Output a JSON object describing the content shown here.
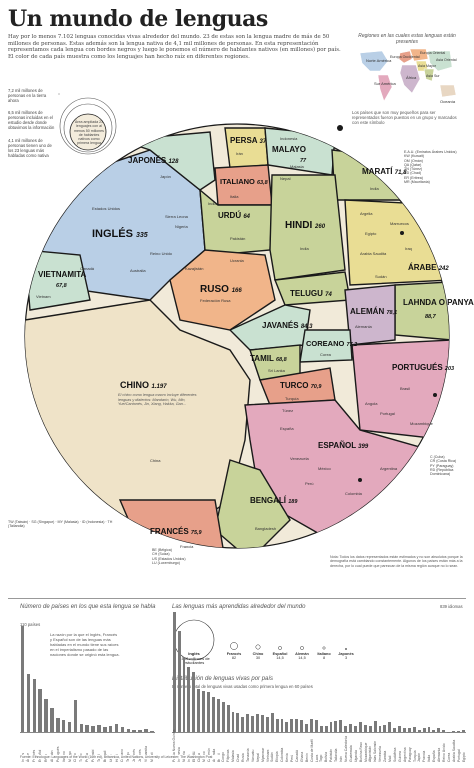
{
  "title": "Un mundo de lenguas",
  "intro": "Hay por lo menos 7.102 lenguas conocidas vivas alrededor del mundo. 23 de estas son la lengua madre de más de 50 millones de personas. Estas además son la lengua nativa de 4,1 mil millones de personas. En esta representación representamos cada lengua con bordes negros y luego le ponemos el número de hablantes nativos (en millones) por país. El color de cada país muestra como los lenguajes han hecho raíz en diferentes regiones.",
  "scale_legend": {
    "a": "7,2 mil millones de personas en la tierra ahora",
    "b": "6,5 mil millones de personas incluidas en el estudio desde donde obtuvimos la información",
    "c": "4,1 mil millones de personas tienen uno de los 23 lenguas más habladas como nativa",
    "d": "Área ampliada 23 lenguajes con al menos 50 millones de hablantes nativos como primera lengua"
  },
  "regions_map": {
    "title": "Regiones en las cuales estas lenguas están presentes",
    "regions": [
      "Europa Oriental",
      "Europa Occidental",
      "Asia Mayor",
      "Asia Sur",
      "Asia Oriental",
      "Norte América",
      "Sur América",
      "África",
      "Oceanía"
    ]
  },
  "small_countries_note": "Los países que son muy pequeños para ser representados fueron puestos en un grupo y marcados con este símbolo",
  "languages": [
    {
      "name": "PERSA",
      "value": "37"
    },
    {
      "name": "MALAYO",
      "value": "77"
    },
    {
      "name": "JAPONÉS",
      "value": "128"
    },
    {
      "name": "ITALIANO",
      "value": "63,8"
    },
    {
      "name": "MARATÍ",
      "value": "71,8"
    },
    {
      "name": "URDÚ",
      "value": "64"
    },
    {
      "name": "HINDI",
      "value": "260"
    },
    {
      "name": "INGLÉS",
      "value": "335"
    },
    {
      "name": "VIETNAMITA",
      "value": "67,8"
    },
    {
      "name": "RUSO",
      "value": "166"
    },
    {
      "name": "TELUGU",
      "value": "74"
    },
    {
      "name": "ÁRABE",
      "value": "242"
    },
    {
      "name": "ALEMÁN",
      "value": "78,1"
    },
    {
      "name": "LAHNDA O PANYABÍ",
      "value": "88,7"
    },
    {
      "name": "JAVANÉS",
      "value": "84,3"
    },
    {
      "name": "COREANO",
      "value": "77,2"
    },
    {
      "name": "TAMIL",
      "value": "68,8"
    },
    {
      "name": "PORTUGUÉS",
      "value": "203"
    },
    {
      "name": "CHINO",
      "value": "1.197"
    },
    {
      "name": "TURCO",
      "value": "70,9"
    },
    {
      "name": "ESPAÑOL",
      "value": "399"
    },
    {
      "name": "BENGALÍ",
      "value": "189"
    },
    {
      "name": "FRANCÉS",
      "value": "75,9"
    }
  ],
  "countries": {
    "indonesia": "Indonesia",
    "malasia": "Malasia",
    "tailandia": "Tailandia",
    "irán": "Irán",
    "afganistán": "Afganistán",
    "japon": "Japón",
    "italia": "Italia",
    "india": "India",
    "pakistan": "Pakistán",
    "nepal": "Nepal",
    "eeuu": "Estados Unidos",
    "reino_unido": "Reino Unido",
    "canada": "Canadá",
    "australia": "Australia",
    "nigeria": "Nigeria",
    "sierra_leona": "Sierra Leona",
    "vietnam": "Vietnam",
    "kazajistan": "Kazajistán",
    "ucrania": "Ucrania",
    "federacion_rusa": "Federación Rusa",
    "egipto": "Egipto",
    "argelia": "Argelia",
    "marruecos": "Marruecos",
    "iraq": "Iraq",
    "arabia_saudita": "Arabia Saudita",
    "sudan": "Sudán",
    "alemania": "Alemania",
    "corea": "Corea",
    "brasil": "Brasil",
    "portugal": "Portugal",
    "mozambique": "Mozambique",
    "angola": "Angola",
    "china": "China",
    "turquia": "Turquía",
    "mexico": "México",
    "colombia": "Colombia",
    "argentina": "Argentina",
    "espana": "España",
    "venezuela": "Venezuela",
    "peru": "Perú",
    "bangladesh": "Bangladesh",
    "francia": "Francia",
    "sri_lanka": "Sri Lanka",
    "tunez": "Túnez"
  },
  "chinese_note": "El chino como lengua macro incluye diferentes lenguas y dialectos: Mandarín, Wu, Min, Yue/Cantonés, Jin, Xiang, Hakka, Gan...",
  "arabic_abbrev": [
    "E.A.U. (Emiratos Árabes Unidos)",
    "KW (Kuwait)",
    "OM (Omán)",
    "QA (Qatar)",
    "TN (Túnez)",
    "CD (Chad)",
    "ER (Eritrea)",
    "MR (Mauritania)"
  ],
  "spanish_abbrev": [
    "C (Cuba)",
    "CR (Costa Rica)",
    "PY (Paraguay)",
    "RD (República Dominicana)"
  ],
  "french_abbrev": [
    "BE (Bélgica)",
    "CH (Suiza)",
    "US (Estados Unidos)",
    "LU (Luxemburgo)"
  ],
  "chinese_abbrev": "TW (Taiwán) · SG (Singapur) · MY (Malasia) · ID (Indonesia) · TH (Tailandia)",
  "bottom_note": "Nota: Todos los datos representados están estimados y no son absolutos porque la demografía está cambiando constantemente. Algunos de los países están más a la derecha, por lo cual puede que parezcan de la misma región aunque no lo sean.",
  "bar_chart_countries": {
    "title": "Número de países en los que esta lengua se habla",
    "note": "La razón por la que el Inglés, Francés y Español son de las lenguas más habladas en el mundo tiene sus raíces en el imperialismo pasado de las naciones donde se originó esta lengua.",
    "ymax_label": "110 países",
    "categories": [
      "Inglés",
      "Árabe",
      "Francés",
      "Español",
      "Ruso",
      "Alemán",
      "Portugués",
      "Italiano",
      "Malayo",
      "Chino",
      "Turco",
      "Persa",
      "Panyabí",
      "Tamil",
      "Bengalí",
      "Urdú",
      "Hindi",
      "Coreano",
      "Telugu",
      "Japonés",
      "Javanés",
      "Vietnamita",
      "Maratí"
    ],
    "values": [
      110,
      60,
      55,
      45,
      34,
      25,
      15,
      12,
      10,
      33,
      8,
      7,
      6,
      7,
      5,
      6,
      8,
      5,
      3,
      2,
      2,
      3,
      1
    ]
  },
  "studied_languages": {
    "title": "Las lenguas más aprendidas alrededor del mundo",
    "center_label": "Inglés",
    "center_value": "1.500 millones de estudiantes",
    "items": [
      {
        "name": "Francés",
        "value": "82"
      },
      {
        "name": "Chino",
        "value": "30"
      },
      {
        "name": "Español",
        "value": "14,5"
      },
      {
        "name": "Alemán",
        "value": "14,5"
      },
      {
        "name": "Italiano",
        "value": "8"
      },
      {
        "name": "Japonés",
        "value": "3"
      }
    ]
  },
  "bar_chart_langs": {
    "title": "Distribución de lenguas vivas por país",
    "subtitle": "El número total de lenguas vivas usadas como primera lengua en 60 países",
    "ymax_label": "839 idiomas",
    "categories": [
      "Papúa Nueva Guinea",
      "Indonesia",
      "Nigeria",
      "India",
      "EE.UU.",
      "China",
      "México",
      "Camerún",
      "Australia",
      "Brasil",
      "Congo",
      "Filipinas",
      "Malasia",
      "Chad",
      "Rusia",
      "Tanzania",
      "Vanuatu",
      "Nepal",
      "Myanmar",
      "Vietnam",
      "Sudán",
      "Etiopía",
      "Colombia",
      "Kenia",
      "Perú",
      "Canadá",
      "Ghana",
      "Benín",
      "Costa de Marfil",
      "Laos",
      "Togo",
      "Bolivia",
      "Pakistán",
      "Tailandia",
      "Irán",
      "Nueva Caledonia",
      "Guatemala",
      "Uganda",
      "Burkina Faso",
      "Mozambique",
      "Afganistán",
      "Islas Salomón",
      "Venezuela",
      "Zambia",
      "Malí",
      "Sudáfrica",
      "Guinea",
      "Argentina",
      "Paraguay",
      "Turquía",
      "Japón",
      "Francia",
      "Italia",
      "España",
      "Alemania",
      "Reino Unido",
      "Corea",
      "Arabia Saudita",
      "Portugal",
      "Egipto"
    ],
    "values": [
      839,
      707,
      527,
      454,
      422,
      299,
      289,
      281,
      245,
      229,
      212,
      186,
      139,
      133,
      106,
      126,
      110,
      123,
      117,
      106,
      134,
      90,
      88,
      68,
      93,
      89,
      83,
      55,
      89,
      86,
      41,
      45,
      73,
      74,
      81,
      39,
      55,
      43,
      68,
      47,
      40,
      74,
      40,
      46,
      68,
      30,
      40,
      26,
      28,
      35,
      16,
      26,
      34,
      14,
      28,
      12,
      3,
      10,
      8,
      11
    ]
  },
  "source": "Fuente: Ethnologue: Languages of the World (16th ed), Britannica, United Nations, University of Leicester; The Washington Post",
  "colors": {
    "west_europe": "#e7a08a",
    "east_europe": "#f1b58a",
    "asia_mayor": "#e9dd94",
    "asia_sur": "#c8d39a",
    "asia_oriental": "#c9e1d1",
    "north_america": "#b9cfe6",
    "south_america": "#e3a9bd",
    "africa": "#cdb6cd",
    "oceania": "#e8d7c3",
    "ring": "#f1ead9",
    "border": "#1a1a1a"
  }
}
